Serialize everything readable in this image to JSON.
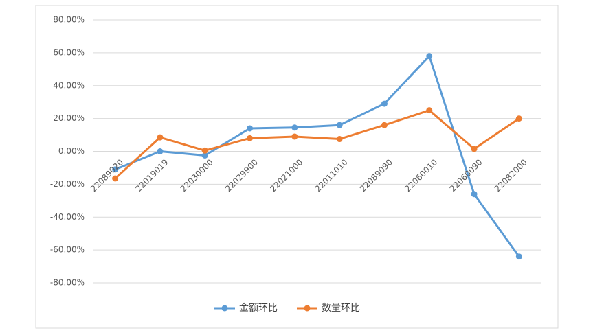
{
  "chart_data": {
    "type": "line",
    "categories": [
      "22089020",
      "22019019",
      "22030000",
      "22029900",
      "22021000",
      "22011010",
      "22089090",
      "22060010",
      "22060090",
      "22082000"
    ],
    "series": [
      {
        "name": "金额环比",
        "color": "#5b9bd5",
        "values": [
          -11,
          0,
          -2.5,
          14,
          14.5,
          16,
          29,
          58,
          -26,
          -64
        ]
      },
      {
        "name": "数量环比",
        "color": "#ed7d31",
        "values": [
          -16.5,
          8.5,
          0.5,
          8,
          9,
          7.5,
          16,
          25,
          1.5,
          20
        ]
      }
    ],
    "ylim": [
      -80,
      80
    ],
    "yticks": [
      {
        "value": -80,
        "label": "-80.00%"
      },
      {
        "value": -60,
        "label": "-60.00%"
      },
      {
        "value": -40,
        "label": "-40.00%"
      },
      {
        "value": -20,
        "label": "-20.00%"
      },
      {
        "value": 0,
        "label": "0.00%"
      },
      {
        "value": 20,
        "label": "20.00%"
      },
      {
        "value": 40,
        "label": "40.00%"
      },
      {
        "value": 60,
        "label": "60.00%"
      },
      {
        "value": 80,
        "label": "80.00%"
      }
    ],
    "grid": true,
    "legend": "bottom"
  }
}
